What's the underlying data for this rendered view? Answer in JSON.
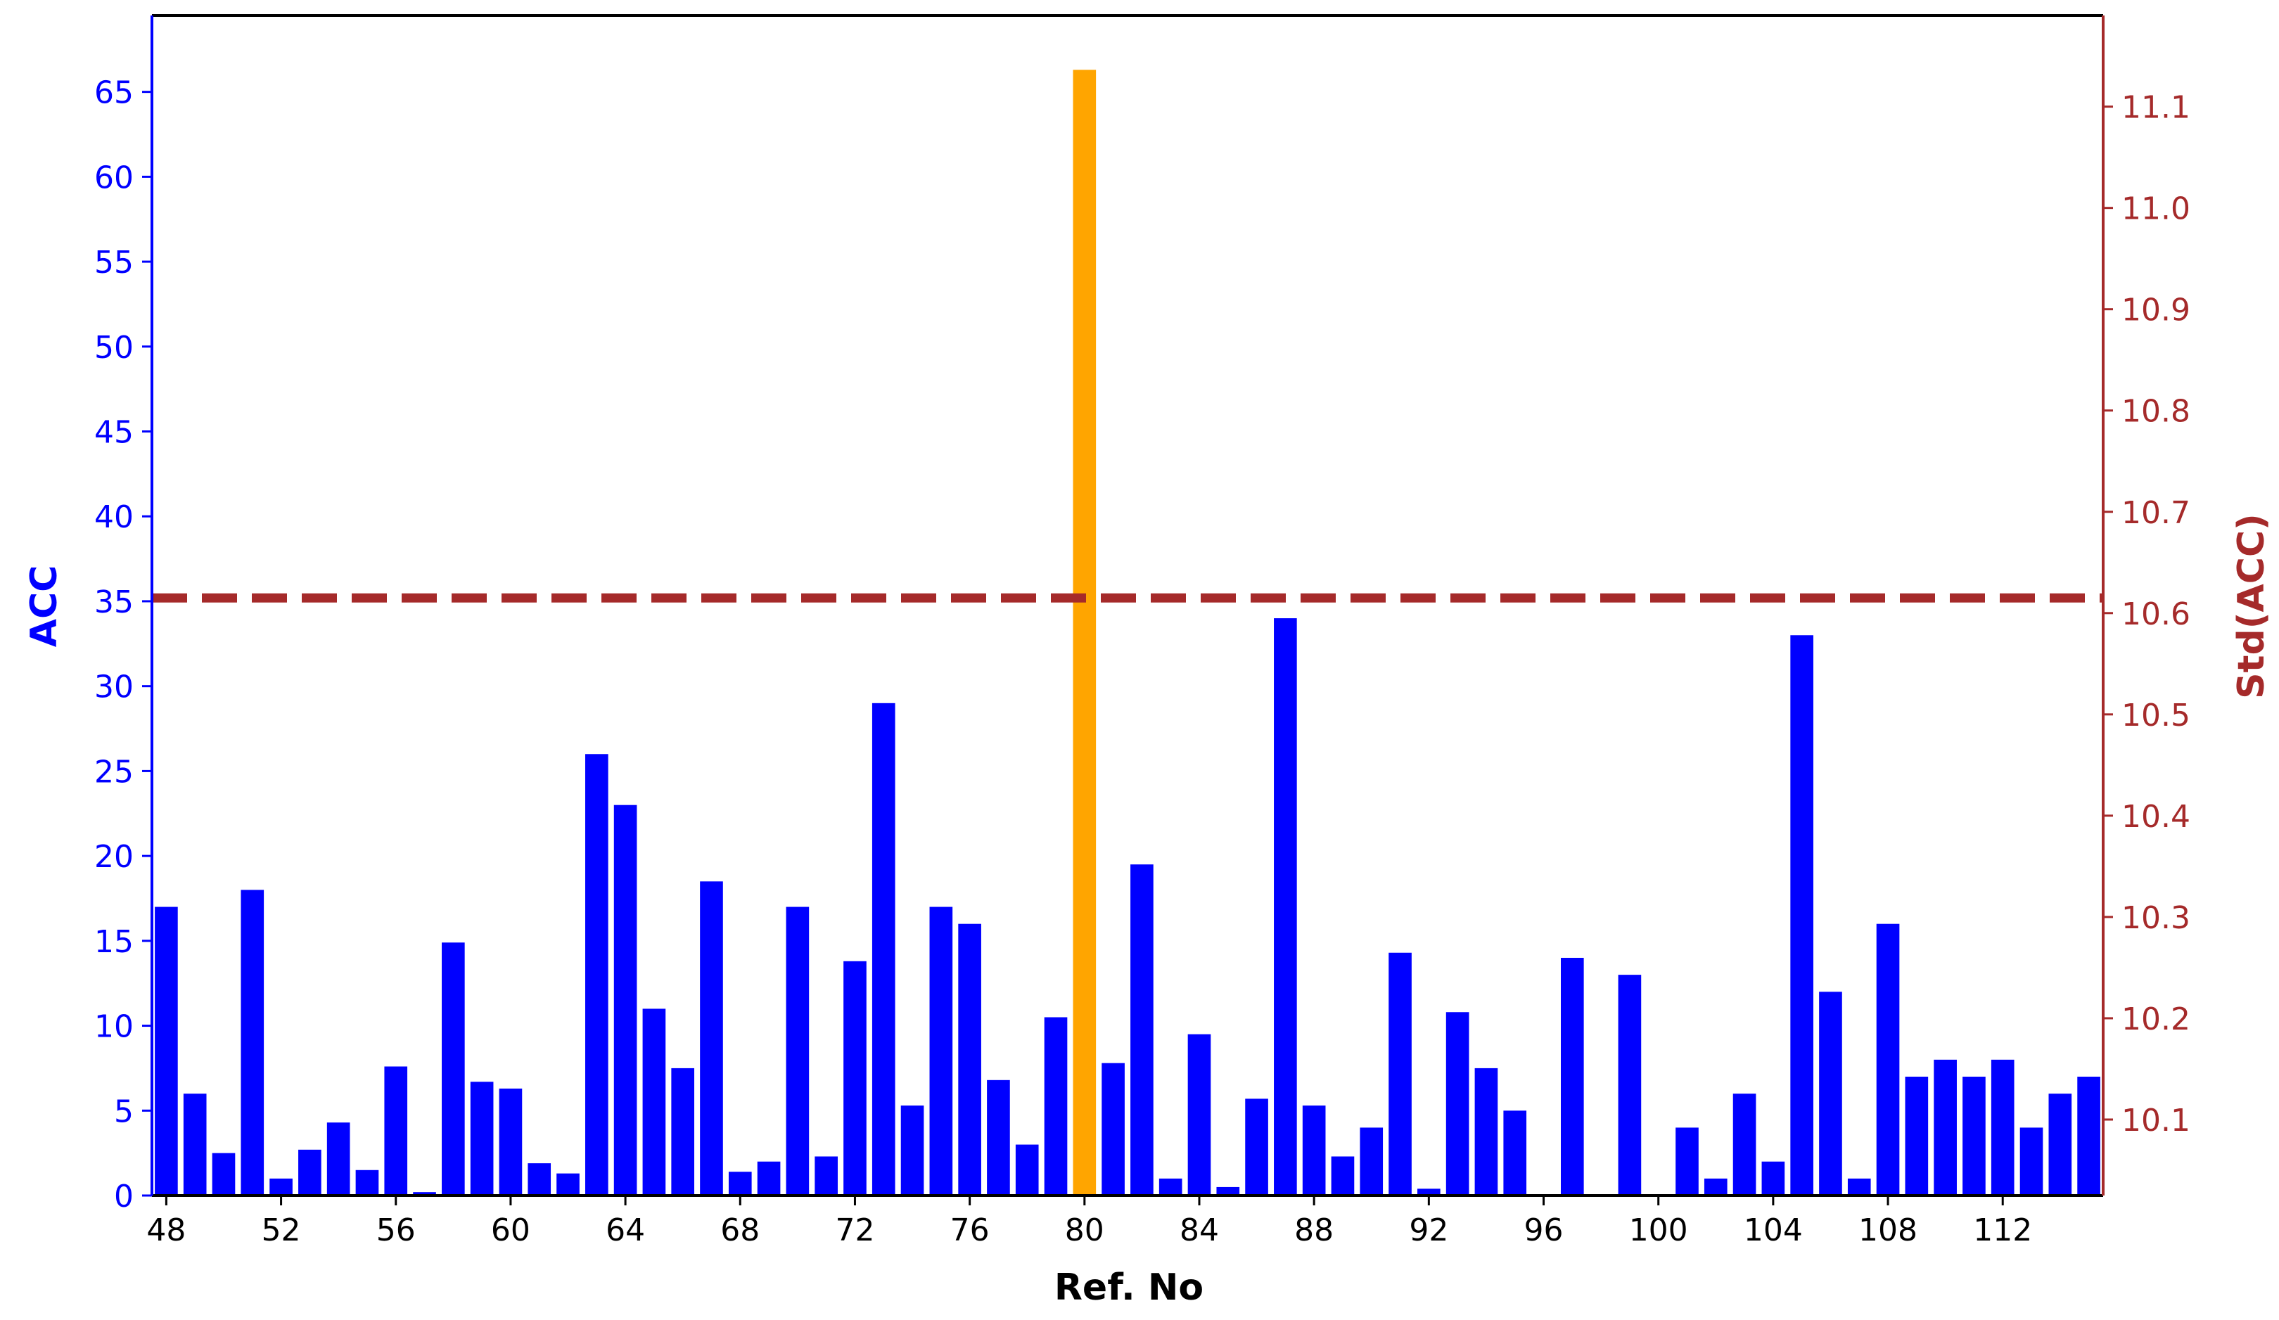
{
  "chart_data": {
    "type": "bar",
    "title": "",
    "xlabel": "Ref. No",
    "ylabel": "ACC",
    "y2label": "Std(ACC)",
    "xlim": [
      47.5,
      115.5
    ],
    "ylim": [
      0,
      69.5
    ],
    "y2lim": [
      10.025,
      11.19
    ],
    "x_ticks": [
      "48",
      "52",
      "56",
      "60",
      "64",
      "68",
      "72",
      "76",
      "80",
      "84",
      "88",
      "92",
      "96",
      "100",
      "104",
      "108",
      "112"
    ],
    "y_ticks": [
      "0",
      "5",
      "10",
      "15",
      "20",
      "25",
      "30",
      "35",
      "40",
      "45",
      "50",
      "55",
      "60",
      "65"
    ],
    "y2_ticks": [
      "10.1",
      "10.2",
      "10.3",
      "10.4",
      "10.5",
      "10.6",
      "10.7",
      "10.8",
      "10.9",
      "11.0",
      "11.1"
    ],
    "categories": [
      48,
      49,
      50,
      51,
      52,
      53,
      54,
      55,
      56,
      57,
      58,
      59,
      60,
      61,
      62,
      63,
      64,
      65,
      66,
      67,
      68,
      69,
      70,
      71,
      72,
      73,
      74,
      75,
      76,
      77,
      78,
      79,
      80,
      81,
      82,
      83,
      84,
      85,
      86,
      87,
      88,
      89,
      90,
      91,
      92,
      93,
      94,
      95,
      96,
      97,
      98,
      99,
      100,
      101,
      102,
      103,
      104,
      105,
      106,
      107,
      108,
      109,
      110,
      111,
      112,
      113,
      114,
      115
    ],
    "values": [
      17,
      6,
      2.5,
      18,
      1,
      2.7,
      4.3,
      1.5,
      7.6,
      0.2,
      14.9,
      6.7,
      6.3,
      1.9,
      1.3,
      26,
      23,
      11,
      7.5,
      18.5,
      1.4,
      2,
      17,
      2.3,
      13.8,
      29,
      5.3,
      17,
      16,
      6.8,
      3,
      10.5,
      66.3,
      7.8,
      19.5,
      1,
      9.5,
      0.5,
      5.7,
      34,
      5.3,
      2.3,
      4,
      14.3,
      0.4,
      10.8,
      7.5,
      5,
      0,
      14,
      0,
      13,
      0,
      4,
      1,
      6,
      2,
      33,
      12,
      1,
      16,
      7,
      8,
      7,
      8,
      4,
      6,
      7
    ],
    "highlight_category": 80,
    "std_line": 10.615,
    "grid": false,
    "colors": {
      "bar": "#0000ff",
      "highlight": "#ffa500",
      "std_line": "#a52a2a",
      "left_axis": "#0000ff",
      "right_axis": "#a52a2a",
      "text": "#000000"
    }
  }
}
